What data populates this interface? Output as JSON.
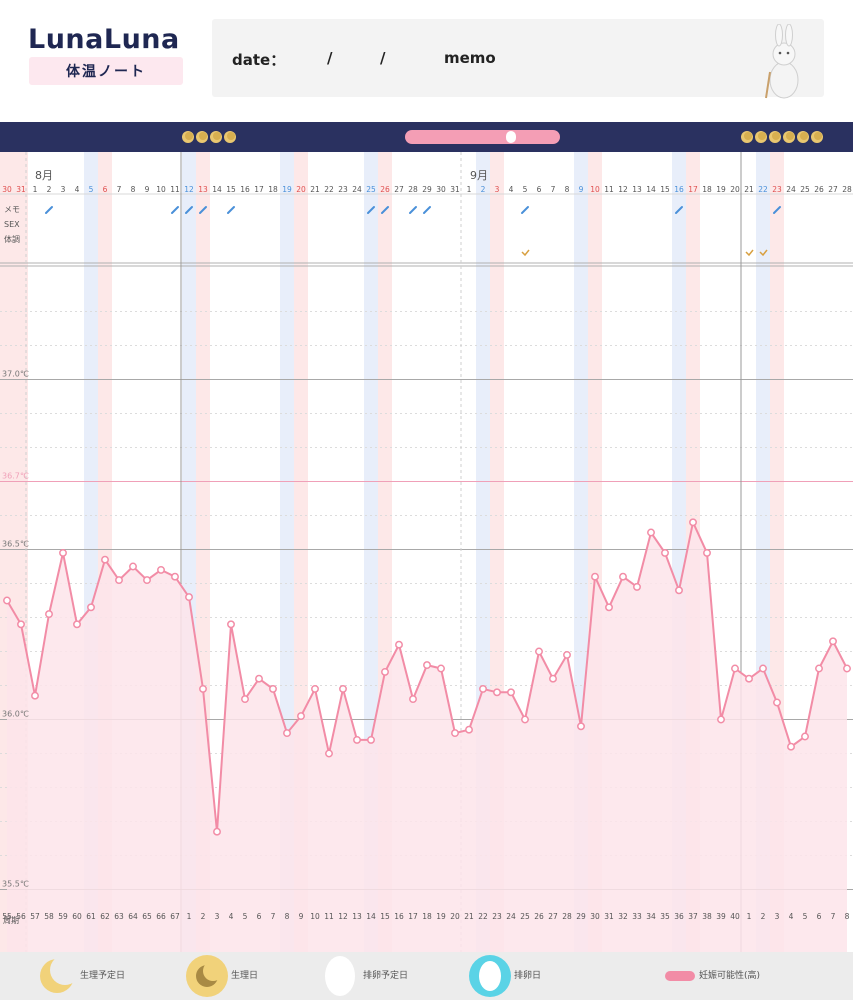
{
  "header": {
    "logo_title": "LunaLuna",
    "logo_subtitle": "体温ノート",
    "date_label": "date：",
    "date_sep1": "/",
    "date_sep2": "/",
    "memo_label": "memo"
  },
  "colors": {
    "navy": "#2a3160",
    "line": "#f28ca6",
    "fill": "#fde4ea",
    "period_band": "#fde8e8",
    "ovulation_band": "#e8eefa",
    "fertile_line": "#f0a0b8",
    "sat_blue": "#4a90d9",
    "sun_red": "#e05050"
  },
  "legend": {
    "items": [
      {
        "icon": "moon-outline-icon",
        "label": "生理予定日"
      },
      {
        "icon": "moon-filled-icon",
        "label": "生理日"
      },
      {
        "icon": "egg-outline-icon",
        "label": "排卵予定日"
      },
      {
        "icon": "egg-filled-icon",
        "label": "排卵日"
      },
      {
        "icon": "pill-icon",
        "label": "妊娠可能性(高)"
      }
    ]
  },
  "chart_data": {
    "type": "line",
    "title": "",
    "ylabel": "",
    "ylim": [
      35.45,
      37.3
    ],
    "yticks": [
      "37.0℃",
      "36.7℃",
      "36.5℃",
      "36.0℃",
      "35.5℃"
    ],
    "row_labels": [
      "メモ",
      "SEX",
      "体調"
    ],
    "month_labels": [
      "8月",
      "9月"
    ],
    "cycle_label": "周期",
    "dates": [
      "30",
      "31",
      "1",
      "2",
      "3",
      "4",
      "5",
      "6",
      "7",
      "8",
      "9",
      "10",
      "11",
      "12",
      "13",
      "14",
      "15",
      "16",
      "17",
      "18",
      "19",
      "20",
      "21",
      "22",
      "23",
      "24",
      "25",
      "26",
      "27",
      "28",
      "29",
      "30",
      "31",
      "1",
      "2",
      "3",
      "4",
      "5",
      "6",
      "7",
      "8",
      "9",
      "10",
      "11",
      "12",
      "13",
      "14",
      "15",
      "16",
      "17",
      "18",
      "19",
      "20",
      "21",
      "22",
      "23",
      "24",
      "25",
      "26",
      "27",
      "28"
    ],
    "cycle_days": [
      "55",
      "56",
      "57",
      "58",
      "59",
      "60",
      "61",
      "62",
      "63",
      "64",
      "65",
      "66",
      "67",
      "1",
      "2",
      "3",
      "4",
      "5",
      "6",
      "7",
      "8",
      "9",
      "10",
      "11",
      "12",
      "13",
      "14",
      "15",
      "16",
      "17",
      "18",
      "19",
      "20",
      "21",
      "22",
      "23",
      "24",
      "25",
      "26",
      "27",
      "28",
      "29",
      "30",
      "31",
      "32",
      "33",
      "34",
      "35",
      "36",
      "37",
      "38",
      "39",
      "40",
      "1",
      "2",
      "3",
      "4",
      "5",
      "6",
      "7",
      "8"
    ],
    "series": [
      {
        "values": [
          36.35,
          36.28,
          36.07,
          36.31,
          36.49,
          36.28,
          36.33,
          36.47,
          36.41,
          36.45,
          36.41,
          36.44,
          36.42,
          36.36,
          36.09,
          35.67,
          36.28,
          36.06,
          36.12,
          36.09,
          35.96,
          36.01,
          36.09,
          35.9,
          36.09,
          35.94,
          35.94,
          36.14,
          36.22,
          36.06,
          36.16,
          36.15,
          35.96,
          35.97,
          36.09,
          36.08,
          36.08,
          36.0,
          36.2,
          36.12,
          36.19,
          35.98,
          36.42,
          36.33,
          36.42,
          36.39,
          36.55,
          36.49,
          36.38,
          36.58,
          36.49,
          36.0,
          36.15,
          36.12,
          36.15,
          36.05,
          35.92,
          35.95,
          36.15,
          36.23,
          36.15
        ]
      }
    ],
    "day_colors": [
      "period",
      "period",
      "",
      "",
      "",
      "",
      "sat",
      "sun",
      "",
      "",
      "",
      "",
      "",
      "sat",
      "sun",
      "",
      "",
      "",
      "",
      "",
      "sat",
      "sun",
      "",
      "",
      "",
      "",
      "sat",
      "sun",
      "",
      "",
      "",
      "",
      "",
      "",
      "sat",
      "sun",
      "",
      "",
      "",
      "",
      "",
      "sat",
      "sun",
      "",
      "",
      "",
      "",
      "",
      "sat",
      "sun",
      "",
      "",
      "",
      "",
      "sat",
      "sun",
      "",
      "",
      "",
      "",
      ""
    ],
    "memo_marks": [
      3,
      12,
      13,
      14,
      16,
      26,
      27,
      29,
      30,
      37,
      48,
      55
    ],
    "check_marks": [
      37,
      53,
      54
    ]
  }
}
